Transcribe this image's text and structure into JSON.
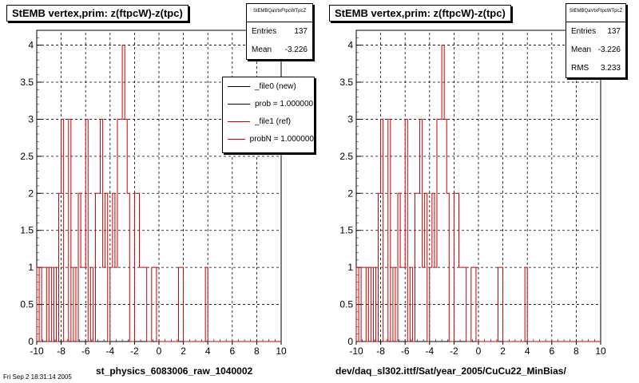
{
  "chart_data": [
    {
      "type": "histogram",
      "title": "StEMB  vertex,prim: z(ftpcW)-z(tpc)",
      "xlim": [
        -10,
        10
      ],
      "ylim": [
        0,
        4.2
      ],
      "x_ticks": [
        "-10",
        "-8",
        "-6",
        "-4",
        "-2",
        "0",
        "2",
        "4",
        "6",
        "8",
        "10"
      ],
      "y_ticks": [
        "0",
        "0.5",
        "1",
        "1.5",
        "2",
        "2.5",
        "3",
        "3.5",
        "4"
      ],
      "grid": true,
      "xlabel": "st_physics_6083006_raw_1040002",
      "stats": {
        "name": "StEMBQaVtxFtpcWTpcZ",
        "rows": [
          {
            "label": "Entries",
            "value": "137"
          },
          {
            "label": "Mean",
            "value": "-3.226"
          }
        ]
      },
      "legend": [
        {
          "label": "_file0 (new)",
          "color": "#000000"
        },
        {
          "label": "prob = 1.000000",
          "color": "#000000"
        },
        {
          "label": "_file1 (ref)",
          "color": "#cc0000"
        },
        {
          "label": "probN = 1.000000",
          "color": "#cc0000"
        }
      ],
      "bin_width": 0.2,
      "x_start": -10,
      "series": [
        {
          "name": "_file1 (ref)",
          "color": "#cc0000",
          "values": [
            1,
            0,
            1,
            1,
            0,
            1,
            0,
            1,
            0,
            2,
            3,
            0,
            0,
            3,
            0,
            1,
            0,
            2,
            1,
            1,
            3,
            0,
            1,
            0,
            2,
            2,
            3,
            1,
            2,
            0,
            1,
            2,
            1,
            3,
            3,
            4,
            3,
            2,
            0,
            0,
            2,
            2,
            1,
            1,
            1,
            0,
            0,
            1,
            1,
            0,
            0,
            0,
            0,
            0,
            0,
            0,
            0,
            0,
            1,
            1,
            0,
            0,
            0,
            0,
            0,
            0,
            0,
            0,
            0,
            1,
            0,
            0,
            0,
            0,
            0,
            0,
            0,
            0,
            0,
            0,
            0,
            0,
            0,
            0,
            0,
            0,
            0,
            0,
            0,
            0,
            0,
            0,
            0,
            0,
            0,
            0,
            0,
            0,
            0,
            0
          ]
        }
      ]
    },
    {
      "type": "histogram",
      "title": "StEMB  vertex,prim: z(ftpcW)-z(tpc)",
      "xlim": [
        -10,
        10
      ],
      "ylim": [
        0,
        4.2
      ],
      "x_ticks": [
        "-10",
        "-8",
        "-6",
        "-4",
        "-2",
        "0",
        "2",
        "4",
        "6",
        "8",
        "10"
      ],
      "y_ticks": [
        "0",
        "0.5",
        "1",
        "1.5",
        "2",
        "2.5",
        "3",
        "3.5",
        "4"
      ],
      "grid": true,
      "xlabel": "dev/daq_sl302.ittf/Sat/year_2005/CuCu22_MinBias/",
      "stats": {
        "name": "StEMBQaVtxFtpcWTpcZ",
        "rows": [
          {
            "label": "Entries",
            "value": "137"
          },
          {
            "label": "Mean",
            "value": "-3.226"
          },
          {
            "label": "RMS",
            "value": "3.233"
          }
        ]
      },
      "bin_width": 0.2,
      "x_start": -10,
      "series": [
        {
          "name": "",
          "color": "#cc0000",
          "values": [
            1,
            0,
            1,
            1,
            0,
            1,
            0,
            1,
            0,
            2,
            3,
            0,
            0,
            3,
            0,
            1,
            0,
            2,
            1,
            1,
            3,
            0,
            1,
            0,
            2,
            2,
            3,
            1,
            2,
            0,
            1,
            2,
            1,
            3,
            3,
            4,
            3,
            2,
            0,
            0,
            2,
            2,
            1,
            1,
            1,
            0,
            0,
            1,
            1,
            0,
            0,
            0,
            0,
            0,
            0,
            0,
            0,
            0,
            1,
            1,
            0,
            0,
            0,
            0,
            0,
            0,
            0,
            0,
            0,
            1,
            0,
            0,
            0,
            0,
            0,
            0,
            0,
            0,
            0,
            0,
            0,
            0,
            0,
            0,
            0,
            0,
            0,
            0,
            0,
            0,
            0,
            0,
            0,
            0,
            0,
            0,
            0,
            0,
            0,
            0
          ]
        }
      ]
    }
  ],
  "corner_text": "Fri Sep  2 18:31:14 2005"
}
